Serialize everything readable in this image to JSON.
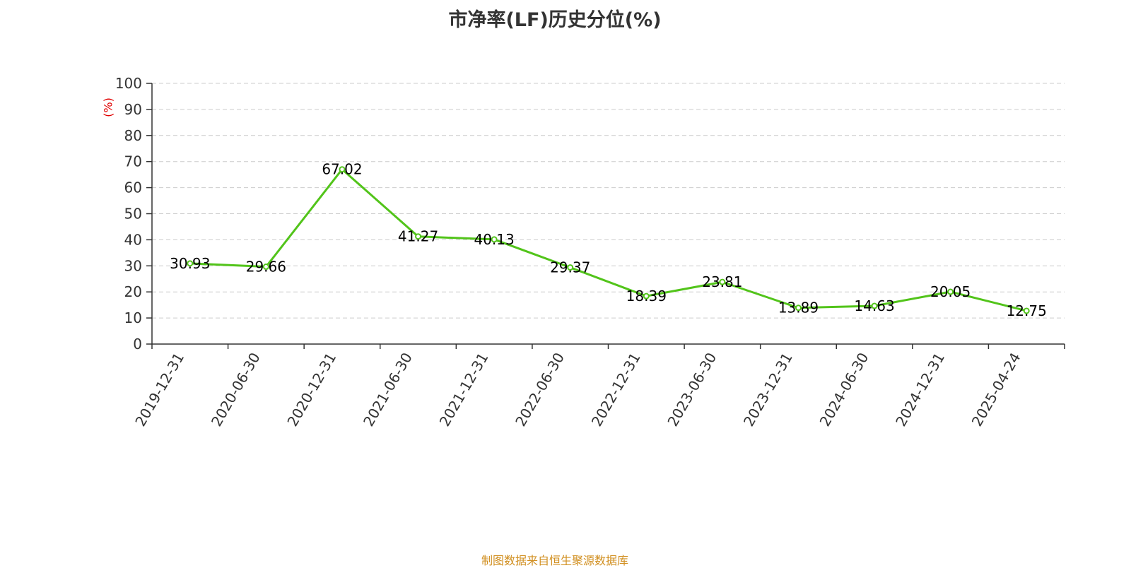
{
  "colors": {
    "line": "#52c41a",
    "axis": "#333333",
    "grid": "#cccccc",
    "unit": "#e00000",
    "source": "#d18f20",
    "title": "#333333"
  },
  "footer": {
    "source": "制图数据来自恒生聚源数据库"
  },
  "chart_data": {
    "type": "line",
    "title": "市净率(LF)历史分位(%)",
    "xlabel": "",
    "ylabel": "(%)",
    "ylim": [
      0,
      100
    ],
    "yticks": [
      0,
      10,
      20,
      30,
      40,
      50,
      60,
      70,
      80,
      90,
      100
    ],
    "grid": true,
    "categories": [
      "2019-12-31",
      "2020-06-30",
      "2020-12-31",
      "2021-06-30",
      "2021-12-31",
      "2022-06-30",
      "2022-12-31",
      "2023-06-30",
      "2023-12-31",
      "2024-06-30",
      "2024-12-31",
      "2025-04-24"
    ],
    "values": [
      30.93,
      29.66,
      67.02,
      41.27,
      40.13,
      29.37,
      18.39,
      23.81,
      13.89,
      14.63,
      20.05,
      12.75
    ],
    "labels": [
      "30.93",
      "29.66",
      "67.02",
      "41.27",
      "40.13",
      "29.37",
      "18.39",
      "23.81",
      "13.89",
      "14.63",
      "20.05",
      "12.75"
    ]
  }
}
